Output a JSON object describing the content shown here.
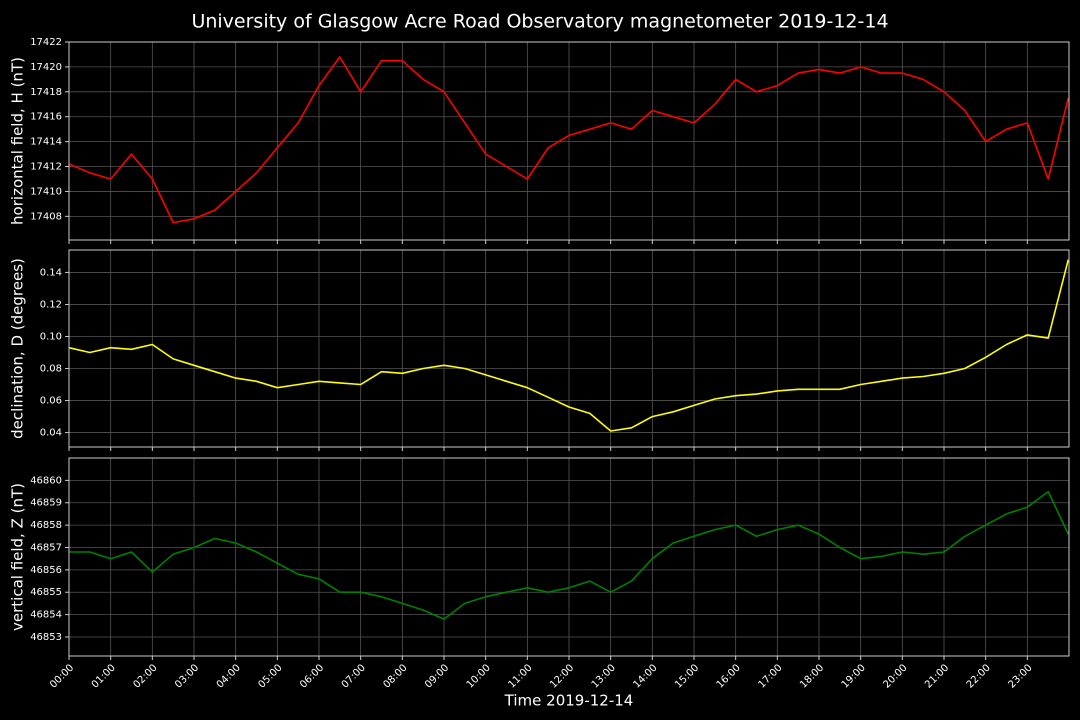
{
  "title": "University of Glasgow Acre Road Observatory magnetometer 2019-12-14",
  "chart_data": [
    {
      "type": "line",
      "ylabel": "horizontal field, H (nT)",
      "color": "#ff0000",
      "grid": true,
      "x": [
        "00:00",
        "00:30",
        "01:00",
        "01:30",
        "02:00",
        "02:30",
        "03:00",
        "03:30",
        "04:00",
        "04:30",
        "05:00",
        "05:30",
        "06:00",
        "06:30",
        "07:00",
        "07:30",
        "08:00",
        "08:30",
        "09:00",
        "09:30",
        "10:00",
        "10:30",
        "11:00",
        "11:30",
        "12:00",
        "12:30",
        "13:00",
        "13:30",
        "14:00",
        "14:30",
        "15:00",
        "15:30",
        "16:00",
        "16:30",
        "17:00",
        "17:30",
        "18:00",
        "18:30",
        "19:00",
        "19:30",
        "20:00",
        "20:30",
        "21:00",
        "21:30",
        "22:00",
        "22:30",
        "23:00",
        "23:30",
        "23:59"
      ],
      "values": [
        17412.2,
        17411.5,
        17411.0,
        17413.0,
        17411.0,
        17407.5,
        17407.8,
        17408.5,
        17410.0,
        17411.5,
        17413.5,
        17415.5,
        17418.5,
        17420.8,
        17418.0,
        17420.5,
        17420.5,
        17419.0,
        17418.0,
        17415.5,
        17413.0,
        17412.0,
        17411.0,
        17413.5,
        17414.5,
        17415.0,
        17415.5,
        17415.0,
        17416.5,
        17416.0,
        17415.5,
        17417.0,
        17419.0,
        17418.0,
        17418.5,
        17419.5,
        17419.8,
        17419.5,
        17420.0,
        17419.5,
        17419.5,
        17419.0,
        17418.0,
        17416.5,
        17414.0,
        17415.0,
        17415.5,
        17411.0,
        17417.5
      ],
      "ylim": [
        17406.1,
        17422.0
      ],
      "yticks": [
        17408,
        17410,
        17412,
        17414,
        17416,
        17418,
        17420,
        17422
      ]
    },
    {
      "type": "line",
      "ylabel": "declination, D (degrees)",
      "color": "#ffff00",
      "grid": true,
      "x": [
        "00:00",
        "00:30",
        "01:00",
        "01:30",
        "02:00",
        "02:30",
        "03:00",
        "03:30",
        "04:00",
        "04:30",
        "05:00",
        "05:30",
        "06:00",
        "06:30",
        "07:00",
        "07:30",
        "08:00",
        "08:30",
        "09:00",
        "09:30",
        "10:00",
        "10:30",
        "11:00",
        "11:30",
        "12:00",
        "12:30",
        "13:00",
        "13:30",
        "14:00",
        "14:30",
        "15:00",
        "15:30",
        "16:00",
        "16:30",
        "17:00",
        "17:30",
        "18:00",
        "18:30",
        "19:00",
        "19:30",
        "20:00",
        "20:30",
        "21:00",
        "21:30",
        "22:00",
        "22:30",
        "23:00",
        "23:30",
        "23:59"
      ],
      "values": [
        0.093,
        0.09,
        0.093,
        0.092,
        0.095,
        0.086,
        0.082,
        0.078,
        0.074,
        0.072,
        0.068,
        0.07,
        0.072,
        0.071,
        0.07,
        0.078,
        0.077,
        0.08,
        0.082,
        0.08,
        0.076,
        0.072,
        0.068,
        0.062,
        0.056,
        0.052,
        0.041,
        0.043,
        0.05,
        0.053,
        0.057,
        0.061,
        0.063,
        0.064,
        0.066,
        0.067,
        0.067,
        0.067,
        0.07,
        0.072,
        0.074,
        0.075,
        0.077,
        0.08,
        0.087,
        0.095,
        0.101,
        0.099,
        0.148
      ],
      "ylim": [
        0.031,
        0.154
      ],
      "yticks": [
        {
          "value": 0.04,
          "label": "0.04"
        },
        {
          "value": 0.06,
          "label": "0.06"
        },
        {
          "value": 0.08,
          "label": "0.08"
        },
        {
          "value": 0.1,
          "label": "0.10"
        },
        {
          "value": 0.12,
          "label": "0.12"
        },
        {
          "value": 0.14,
          "label": "0.14"
        }
      ]
    },
    {
      "type": "line",
      "ylabel": "vertical field, Z (nT)",
      "xlabel": "Time 2019-12-14",
      "color": "#008000",
      "grid": true,
      "x": [
        "00:00",
        "00:30",
        "01:00",
        "01:30",
        "02:00",
        "02:30",
        "03:00",
        "03:30",
        "04:00",
        "04:30",
        "05:00",
        "05:30",
        "06:00",
        "06:30",
        "07:00",
        "07:30",
        "08:00",
        "08:30",
        "09:00",
        "09:30",
        "10:00",
        "10:30",
        "11:00",
        "11:30",
        "12:00",
        "12:30",
        "13:00",
        "13:30",
        "14:00",
        "14:30",
        "15:00",
        "15:30",
        "16:00",
        "16:30",
        "17:00",
        "17:30",
        "18:00",
        "18:30",
        "19:00",
        "19:30",
        "20:00",
        "20:30",
        "21:00",
        "21:30",
        "22:00",
        "22:30",
        "23:00",
        "23:30",
        "23:59"
      ],
      "values": [
        46856.8,
        46856.8,
        46856.5,
        46856.8,
        46855.9,
        46856.7,
        46857.0,
        46857.4,
        46857.2,
        46856.8,
        46856.3,
        46855.8,
        46855.6,
        46855.0,
        46855.0,
        46854.8,
        46854.5,
        46854.2,
        46853.8,
        46854.5,
        46854.8,
        46855.0,
        46855.2,
        46855.0,
        46855.2,
        46855.5,
        46855.0,
        46855.5,
        46856.5,
        46857.2,
        46857.5,
        46857.8,
        46858.0,
        46857.5,
        46857.8,
        46858.0,
        46857.6,
        46857.0,
        46856.5,
        46856.6,
        46856.8,
        46856.7,
        46856.8,
        46857.5,
        46858.0,
        46858.5,
        46858.8,
        46859.5,
        46857.6
      ],
      "ylim": [
        46852.15,
        46861.0
      ],
      "yticks": [
        46853,
        46854,
        46855,
        46856,
        46857,
        46858,
        46859,
        46860
      ],
      "xlim": [
        "00:00",
        "24:00"
      ],
      "xticks": [
        "00:00",
        "01:00",
        "02:00",
        "03:00",
        "04:00",
        "05:00",
        "06:00",
        "07:00",
        "08:00",
        "09:00",
        "10:00",
        "11:00",
        "12:00",
        "13:00",
        "14:00",
        "15:00",
        "16:00",
        "17:00",
        "18:00",
        "19:00",
        "20:00",
        "21:00",
        "22:00",
        "23:00"
      ]
    }
  ]
}
